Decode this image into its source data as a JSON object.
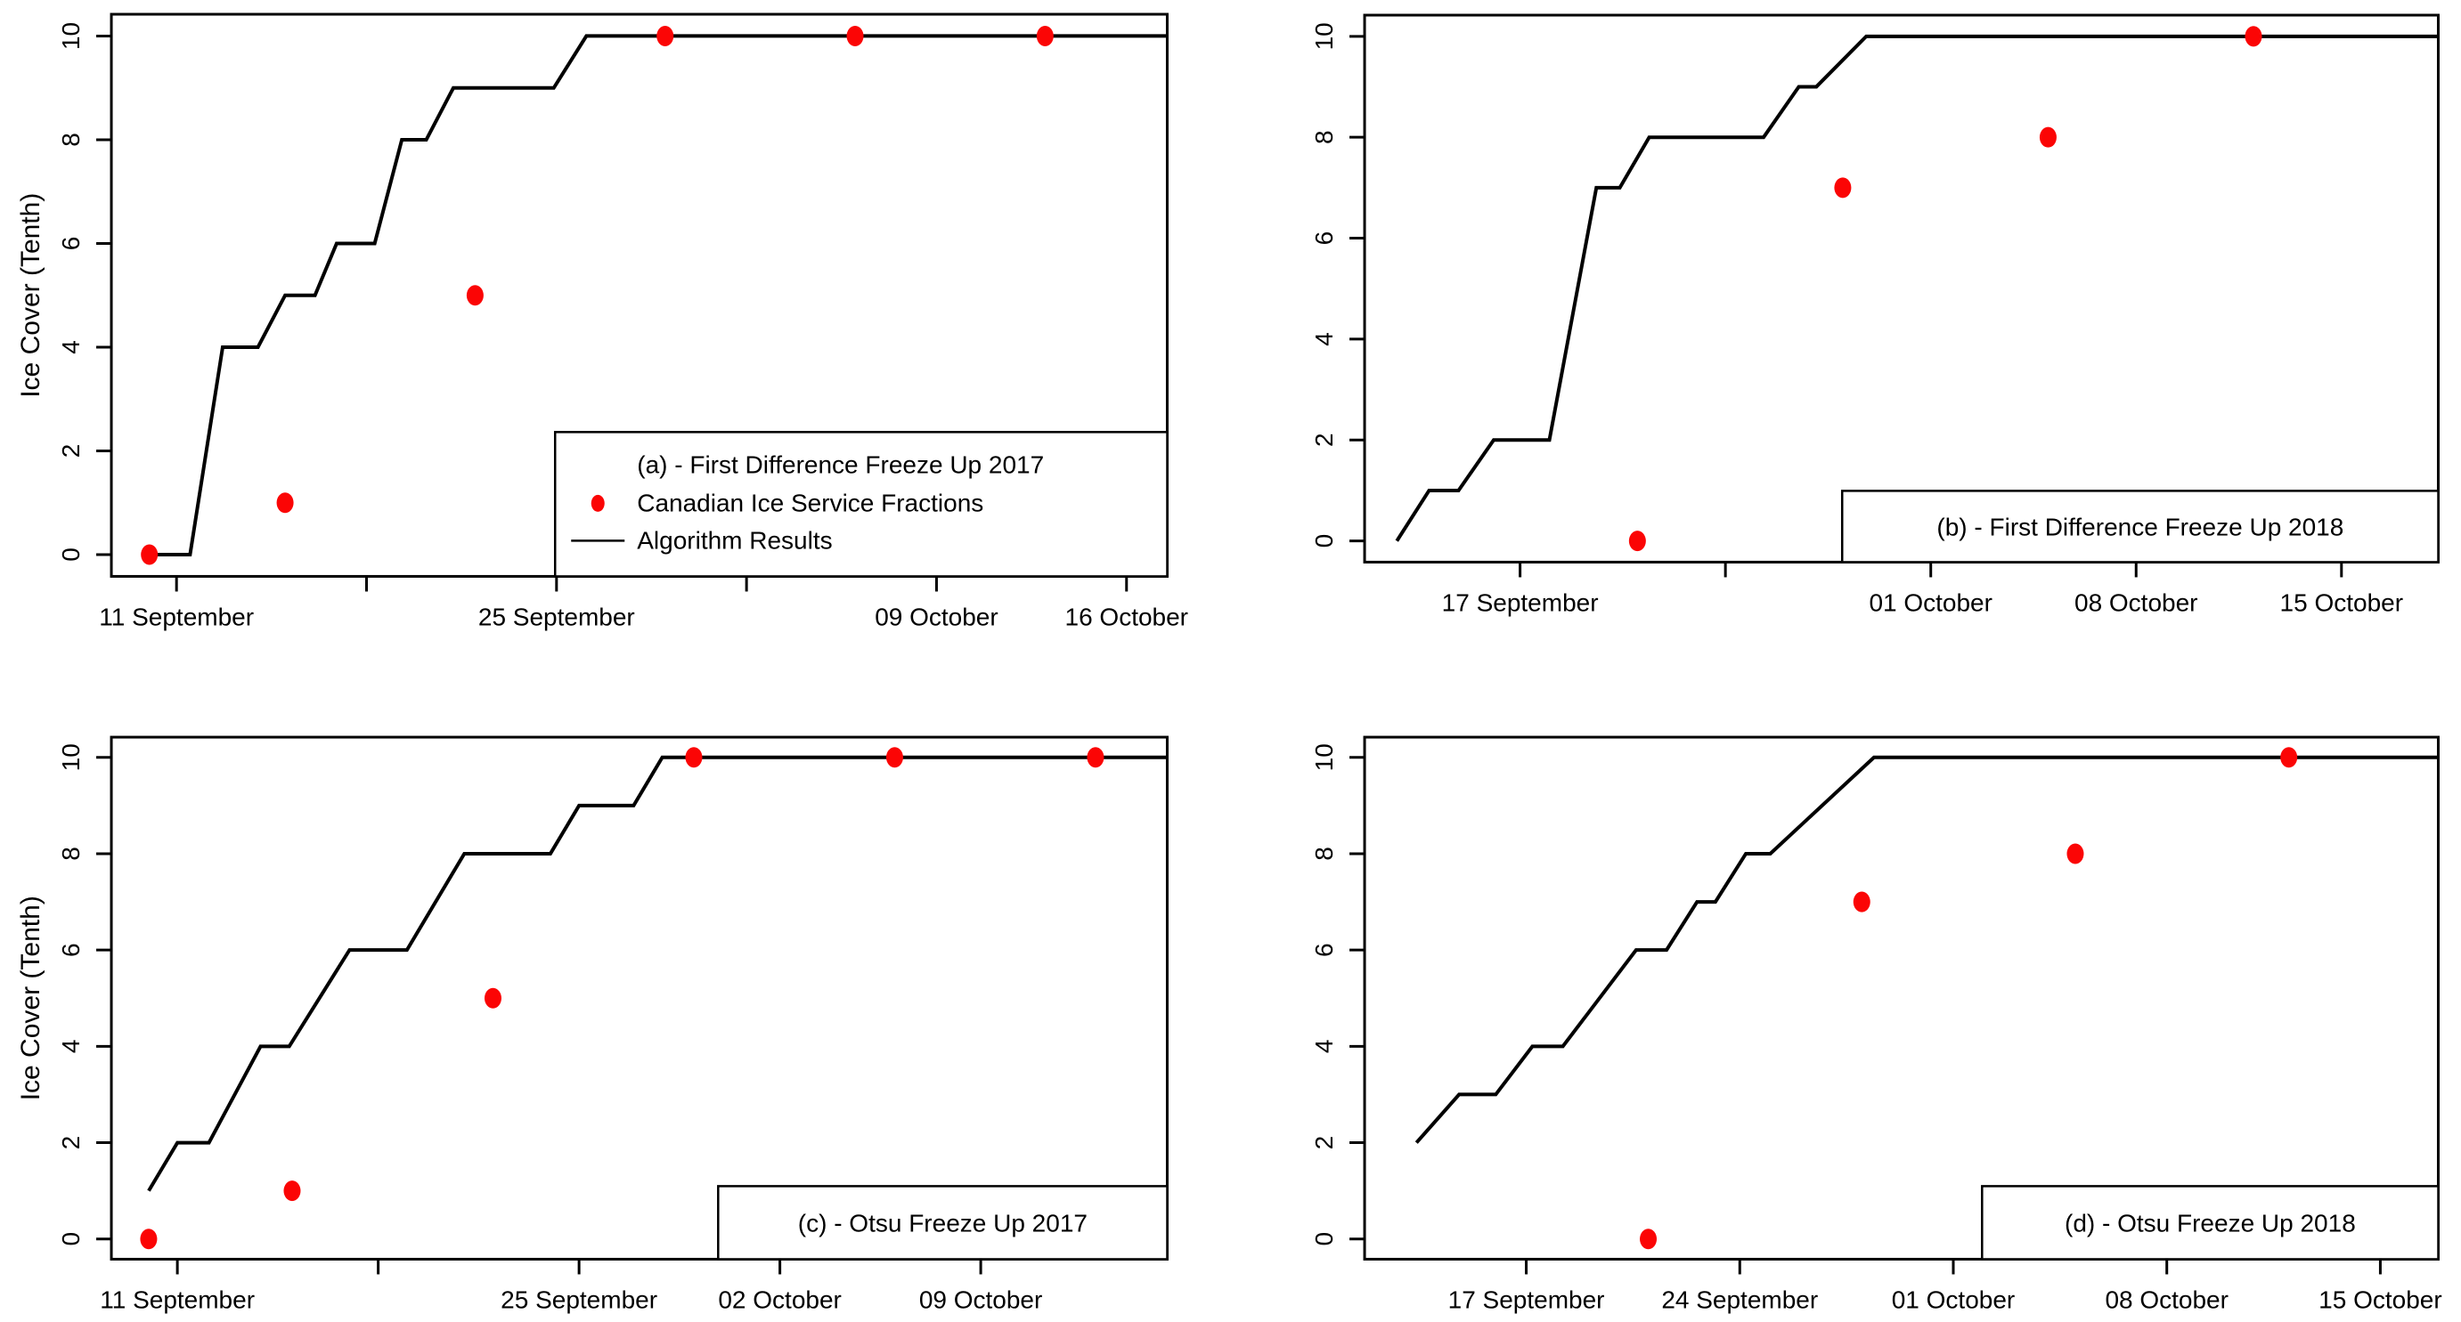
{
  "figure": {
    "background": "#ffffff",
    "colors": {
      "algorithm_line": "#000000",
      "cis_dot": "#fb0505",
      "axis": "#000000",
      "text": "#000000",
      "legend_background": "#ffffff"
    },
    "y_axis_label": "Ice Cover (Tenth)"
  },
  "legend": {
    "dot_label": "Canadian Ice Service Fractions",
    "line_label": "Algorithm Results"
  },
  "chart_data": [
    {
      "id": "a",
      "type": "line+scatter",
      "title": "(a) - First Difference Freeze Up 2017",
      "ylabel": "Ice Cover (Tenth)",
      "ylim": [
        0,
        10
      ],
      "yticks": [
        0,
        2,
        4,
        6,
        8,
        10
      ],
      "x_unit": "days since 11 September 2017",
      "x_domain": [
        -2.4,
        36.5
      ],
      "x_ticks": [
        {
          "d": 0,
          "label": "11 September"
        },
        {
          "d": 7,
          "label": ""
        },
        {
          "d": 14,
          "label": "25 September"
        },
        {
          "d": 21,
          "label": ""
        },
        {
          "d": 28,
          "label": "09 October"
        },
        {
          "d": 35,
          "label": "16 October"
        }
      ],
      "series": [
        {
          "name": "Algorithm Results",
          "type": "line",
          "points": [
            [
              -1.2,
              0
            ],
            [
              0.5,
              0
            ],
            [
              1.7,
              4
            ],
            [
              3,
              4
            ],
            [
              4,
              5
            ],
            [
              5.1,
              5
            ],
            [
              5.9,
              6
            ],
            [
              7.3,
              6
            ],
            [
              8.3,
              8
            ],
            [
              9.2,
              8
            ],
            [
              10.2,
              9
            ],
            [
              13.9,
              9
            ],
            [
              15.1,
              10
            ],
            [
              36.5,
              10
            ]
          ]
        },
        {
          "name": "Canadian Ice Service Fractions",
          "type": "scatter",
          "points": [
            [
              -1,
              0
            ],
            [
              4,
              1
            ],
            [
              11,
              5
            ],
            [
              18,
              10
            ],
            [
              25,
              10
            ],
            [
              32,
              10
            ]
          ],
          "dates": [
            "10 September",
            "15 September",
            "22 September",
            "29 September",
            "06 October",
            "13 October"
          ]
        }
      ]
    },
    {
      "id": "b",
      "type": "line+scatter",
      "title": "(b) - First Difference Freeze Up 2018",
      "ylim": [
        0,
        10
      ],
      "yticks": [
        0,
        2,
        4,
        6,
        8,
        10
      ],
      "x_unit": "days since 17 September 2018",
      "x_domain": [
        -5.3,
        31.3
      ],
      "x_ticks": [
        {
          "d": 0,
          "label": "17 September"
        },
        {
          "d": 7,
          "label": ""
        },
        {
          "d": 14,
          "label": "01 October"
        },
        {
          "d": 21,
          "label": "08 October"
        },
        {
          "d": 28,
          "label": "15 October"
        }
      ],
      "series": [
        {
          "name": "Algorithm Results",
          "type": "line",
          "points": [
            [
              -4.2,
              0
            ],
            [
              -3.1,
              1
            ],
            [
              -2.1,
              1
            ],
            [
              -0.9,
              2
            ],
            [
              1,
              2
            ],
            [
              2.6,
              7
            ],
            [
              3.4,
              7
            ],
            [
              4.4,
              8
            ],
            [
              8.3,
              8
            ],
            [
              9.5,
              9
            ],
            [
              10.1,
              9
            ],
            [
              11.8,
              10
            ],
            [
              31.3,
              10
            ]
          ]
        },
        {
          "name": "Canadian Ice Service Fractions",
          "type": "scatter",
          "points": [
            [
              4,
              0
            ],
            [
              11,
              7
            ],
            [
              18,
              8
            ],
            [
              25,
              10
            ]
          ],
          "dates": [
            "21 September",
            "28 September",
            "05 October",
            "12 October"
          ]
        }
      ]
    },
    {
      "id": "c",
      "type": "line+scatter",
      "title": "(c) - Otsu Freeze Up 2017",
      "ylabel": "Ice Cover (Tenth)",
      "ylim": [
        0,
        10
      ],
      "yticks": [
        0,
        2,
        4,
        6,
        8,
        10
      ],
      "x_unit": "days since 11 September 2017",
      "x_domain": [
        -2.3,
        34.5
      ],
      "x_ticks": [
        {
          "d": 0,
          "label": "11 September"
        },
        {
          "d": 7,
          "label": ""
        },
        {
          "d": 14,
          "label": "25 September"
        },
        {
          "d": 21,
          "label": "02 October"
        },
        {
          "d": 28,
          "label": "09 October"
        }
      ],
      "series": [
        {
          "name": "Algorithm Results",
          "type": "line",
          "points": [
            [
              -1,
              1
            ],
            [
              0,
              2
            ],
            [
              1.1,
              2
            ],
            [
              2.9,
              4
            ],
            [
              3.9,
              4
            ],
            [
              6,
              6
            ],
            [
              8,
              6
            ],
            [
              10,
              8
            ],
            [
              13,
              8
            ],
            [
              14,
              9
            ],
            [
              15.9,
              9
            ],
            [
              16.9,
              10
            ],
            [
              34.5,
              10
            ]
          ]
        },
        {
          "name": "Canadian Ice Service Fractions",
          "type": "scatter",
          "points": [
            [
              -1,
              0
            ],
            [
              4,
              1
            ],
            [
              11,
              5
            ],
            [
              18,
              10
            ],
            [
              25,
              10
            ],
            [
              32,
              10
            ]
          ],
          "dates": [
            "10 September",
            "15 September",
            "22 September",
            "29 September",
            "06 October",
            "13 October"
          ]
        }
      ]
    },
    {
      "id": "d",
      "type": "line+scatter",
      "title": "(d) - Otsu Freeze Up 2018",
      "ylim": [
        0,
        10
      ],
      "yticks": [
        0,
        2,
        4,
        6,
        8,
        10
      ],
      "x_unit": "days since 17 September 2018",
      "x_domain": [
        -5.3,
        29.9
      ],
      "x_ticks": [
        {
          "d": 0,
          "label": "17 September"
        },
        {
          "d": 7,
          "label": "24 September"
        },
        {
          "d": 14,
          "label": "01 October"
        },
        {
          "d": 21,
          "label": "08 October"
        },
        {
          "d": 28,
          "label": "15 October"
        }
      ],
      "series": [
        {
          "name": "Algorithm Results",
          "type": "line",
          "points": [
            [
              -3.6,
              2
            ],
            [
              -2.2,
              3
            ],
            [
              -1,
              3
            ],
            [
              0.2,
              4
            ],
            [
              1.2,
              4
            ],
            [
              3.6,
              6
            ],
            [
              4.6,
              6
            ],
            [
              5.6,
              7
            ],
            [
              6.2,
              7
            ],
            [
              7.2,
              8
            ],
            [
              8,
              8
            ],
            [
              11.4,
              10
            ],
            [
              29.9,
              10
            ]
          ]
        },
        {
          "name": "Canadian Ice Service Fractions",
          "type": "scatter",
          "points": [
            [
              4,
              0
            ],
            [
              11,
              7
            ],
            [
              18,
              8
            ],
            [
              25,
              10
            ]
          ],
          "dates": [
            "21 September",
            "28 September",
            "05 October",
            "12 October"
          ]
        }
      ]
    }
  ]
}
